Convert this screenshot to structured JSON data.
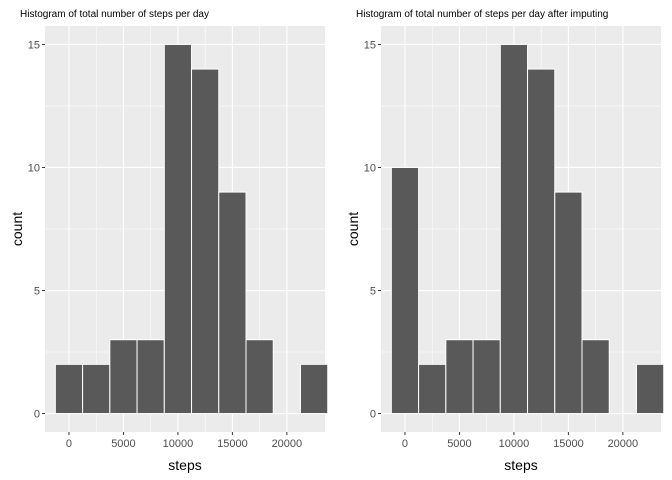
{
  "chart_data": [
    {
      "type": "bar",
      "subtype": "histogram",
      "title": "Histogram of total number of steps per day",
      "xlabel": "steps",
      "ylabel": "count",
      "bin_width": 2500,
      "bin_centers": [
        0,
        2500,
        5000,
        7500,
        10000,
        12500,
        15000,
        17500,
        20000,
        22500
      ],
      "values": [
        2,
        2,
        3,
        3,
        15,
        14,
        9,
        3,
        0,
        2
      ],
      "xlim": [
        -2200,
        23500
      ],
      "ylim": [
        -0.75,
        15.75
      ],
      "x_ticks": [
        0,
        5000,
        10000,
        15000,
        20000
      ],
      "x_tick_labels": [
        "0",
        "5000",
        "10000",
        "15000",
        "20000"
      ],
      "y_ticks": [
        0,
        5,
        10,
        15
      ],
      "y_tick_labels": [
        "0",
        "5",
        "10",
        "15"
      ],
      "grid": true,
      "legend": "none"
    },
    {
      "type": "bar",
      "subtype": "histogram",
      "title": "Histogram of total number of steps per day after imputing",
      "xlabel": "steps",
      "ylabel": "count",
      "bin_width": 2500,
      "bin_centers": [
        0,
        2500,
        5000,
        7500,
        10000,
        12500,
        15000,
        17500,
        20000,
        22500
      ],
      "values": [
        10,
        2,
        3,
        3,
        15,
        14,
        9,
        3,
        0,
        2
      ],
      "xlim": [
        -2200,
        23500
      ],
      "ylim": [
        -0.75,
        15.75
      ],
      "x_ticks": [
        0,
        5000,
        10000,
        15000,
        20000
      ],
      "x_tick_labels": [
        "0",
        "5000",
        "10000",
        "15000",
        "20000"
      ],
      "y_ticks": [
        0,
        5,
        10,
        15
      ],
      "y_tick_labels": [
        "0",
        "5",
        "10",
        "15"
      ],
      "grid": true,
      "legend": "none"
    }
  ],
  "colors": {
    "panel_background": "#ebebeb",
    "bar_fill": "#595959",
    "bar_outline": "#ffffff",
    "grid": "#ffffff"
  }
}
